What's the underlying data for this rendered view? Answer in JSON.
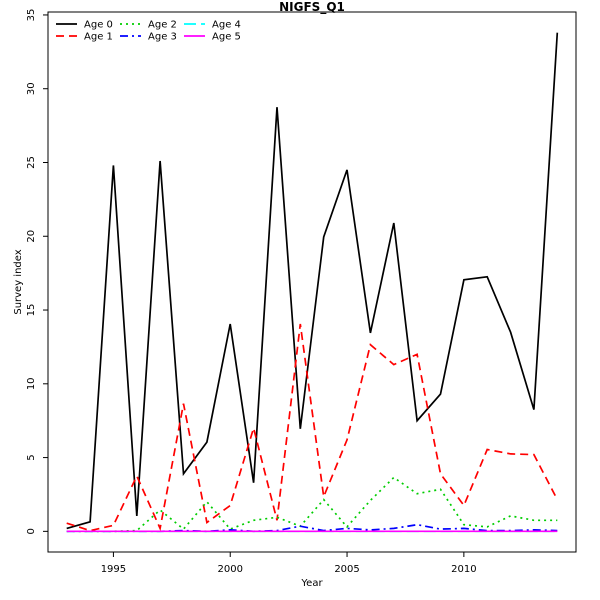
{
  "chart_data": {
    "type": "line",
    "title": "NIGFS_Q1",
    "xlabel": "Year",
    "ylabel": "Survey index",
    "xlim": [
      1992.2,
      2014.8
    ],
    "ylim": [
      -1.4,
      35.2
    ],
    "x_ticks": [
      1995,
      2000,
      2005,
      2010
    ],
    "y_ticks": [
      0,
      5,
      10,
      15,
      20,
      25,
      30,
      35
    ],
    "grid": false,
    "legend_placement": "top-left",
    "x": [
      1993,
      1994,
      1995,
      1996,
      1997,
      1998,
      1999,
      2000,
      2001,
      2002,
      2003,
      2004,
      2005,
      2006,
      2007,
      2008,
      2009,
      2010,
      2011,
      2012,
      2013,
      2014
    ],
    "series": [
      {
        "name": "Age 0",
        "color": "#000000",
        "dash": "solid",
        "values": [
          0.2,
          0.65,
          24.8,
          1.05,
          25.1,
          3.9,
          6.05,
          14.05,
          3.3,
          28.75,
          6.95,
          19.95,
          24.5,
          13.45,
          20.9,
          7.5,
          9.3,
          17.05,
          17.25,
          13.5,
          8.25,
          33.8
        ]
      },
      {
        "name": "Age 1",
        "color": "#ff0000",
        "dash": "dashed",
        "values": [
          0.55,
          0.05,
          0.4,
          3.75,
          0.2,
          8.65,
          0.6,
          1.75,
          7.0,
          0.75,
          14.05,
          2.35,
          6.2,
          12.65,
          11.3,
          12.0,
          3.9,
          1.75,
          5.55,
          5.25,
          5.2,
          2.15
        ]
      },
      {
        "name": "Age 2",
        "color": "#00cd00",
        "dash": "dotted",
        "values": [
          0.0,
          0.0,
          0.0,
          0.05,
          1.45,
          0.15,
          2.0,
          0.15,
          0.75,
          0.95,
          0.35,
          2.15,
          0.3,
          2.1,
          3.65,
          2.55,
          2.85,
          0.45,
          0.3,
          1.05,
          0.75,
          0.75
        ]
      },
      {
        "name": "Age 3",
        "color": "#0000ff",
        "dash": "dashdot",
        "values": [
          0.0,
          0.0,
          0.0,
          0.0,
          0.0,
          0.05,
          0.0,
          0.1,
          0.0,
          0.05,
          0.35,
          0.05,
          0.2,
          0.1,
          0.2,
          0.45,
          0.15,
          0.2,
          0.05,
          0.05,
          0.1,
          0.05
        ]
      },
      {
        "name": "Age 4",
        "color": "#00ffff",
        "dash": "longdash",
        "values": [
          0,
          0,
          0,
          0,
          0,
          0,
          0,
          0,
          0,
          0,
          0,
          0,
          0,
          0,
          0,
          0,
          0,
          0,
          0,
          0,
          0,
          0
        ]
      },
      {
        "name": "Age 5",
        "color": "#ff00ff",
        "dash": "solid",
        "values": [
          0,
          0,
          0,
          0,
          0,
          0,
          0,
          0,
          0,
          0,
          0,
          0,
          0,
          0,
          0,
          0,
          0,
          0,
          0,
          0,
          0,
          0
        ]
      }
    ]
  }
}
